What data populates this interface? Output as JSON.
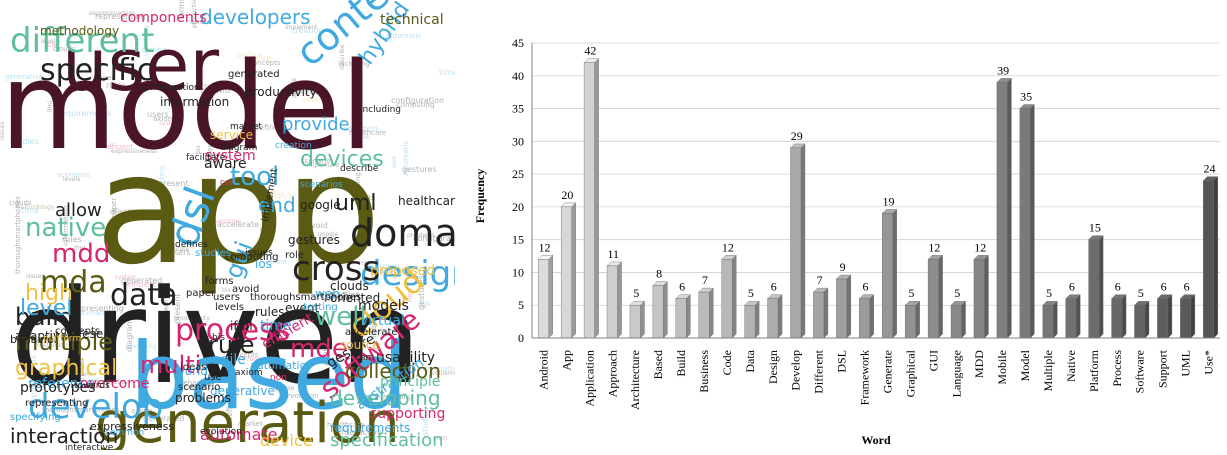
{
  "word_cloud": {
    "words": [
      {
        "text": "model",
        "color": "#4a1528"
      },
      {
        "text": "user",
        "color": "#4a1528"
      },
      {
        "text": "app",
        "color": "#5a5a12"
      },
      {
        "text": "driven",
        "color": "#222222"
      },
      {
        "text": "based",
        "color": "#3fa9e0"
      },
      {
        "text": "generation",
        "color": "#5a5a12"
      },
      {
        "text": "different",
        "color": "#5fbf9c"
      },
      {
        "text": "specific",
        "color": "#222222"
      },
      {
        "text": "context",
        "color": "#3fa9e0"
      },
      {
        "text": "hybrid",
        "color": "#3fa9e0"
      },
      {
        "text": "design",
        "color": "#3fa9e0"
      },
      {
        "text": "domain",
        "color": "#222222"
      },
      {
        "text": "cross",
        "color": "#222222"
      },
      {
        "text": "dsl",
        "color": "#3fa9e0"
      },
      {
        "text": "mdd",
        "color": "#d6266f"
      },
      {
        "text": "mda",
        "color": "#5a5a12"
      },
      {
        "text": "data",
        "color": "#222222"
      },
      {
        "text": "gui",
        "color": "#3fa9e0"
      },
      {
        "text": "cloud",
        "color": "#f0c040"
      },
      {
        "text": "process",
        "color": "#d6266f"
      },
      {
        "text": "software",
        "color": "#d6266f"
      },
      {
        "text": "develop",
        "color": "#3fa9e0"
      },
      {
        "text": "interaction",
        "color": "#222222"
      },
      {
        "text": "specification",
        "color": "#5fbf9c"
      },
      {
        "text": "developing",
        "color": "#5fbf9c"
      },
      {
        "text": "collection",
        "color": "#5a5a12"
      },
      {
        "text": "multiple",
        "color": "#5a5a12"
      },
      {
        "text": "graphical",
        "color": "#f0c040"
      },
      {
        "text": "build",
        "color": "#222222"
      },
      {
        "text": "native",
        "color": "#5fbf9c"
      },
      {
        "text": "level",
        "color": "#3fa9e0"
      },
      {
        "text": "high",
        "color": "#f0c040"
      },
      {
        "text": "tool",
        "color": "#3fa9e0"
      },
      {
        "text": "uml",
        "color": "#222222"
      },
      {
        "text": "devices",
        "color": "#5fbf9c"
      },
      {
        "text": "developers",
        "color": "#3fa9e0"
      },
      {
        "text": "components",
        "color": "#d6266f"
      },
      {
        "text": "technical",
        "color": "#5a5a12"
      },
      {
        "text": "provide",
        "color": "#3fa9e0"
      },
      {
        "text": "rule",
        "color": "#222222"
      },
      {
        "text": "mde",
        "color": "#d6266f"
      },
      {
        "text": "well",
        "color": "#5fbf9c"
      },
      {
        "text": "models",
        "color": "#222222"
      },
      {
        "text": "virtual",
        "color": "#3fa9e0"
      },
      {
        "text": "gesture",
        "color": "#222222"
      },
      {
        "text": "usability",
        "color": "#222222"
      },
      {
        "text": "supporting",
        "color": "#d6266f"
      },
      {
        "text": "abstraction",
        "color": "#3fa9e0"
      },
      {
        "text": "automate",
        "color": "#d6266f"
      },
      {
        "text": "device",
        "color": "#f0c040"
      },
      {
        "text": "reference",
        "color": "#3fa9e0"
      },
      {
        "text": "adaptive",
        "color": "#222222"
      },
      {
        "text": "prototypes",
        "color": "#222222"
      },
      {
        "text": "multi",
        "color": "#d6266f"
      },
      {
        "text": "allow",
        "color": "#222222"
      },
      {
        "text": "proposed",
        "color": "#f0c040"
      },
      {
        "text": "end",
        "color": "#3fa9e0"
      },
      {
        "text": "ios",
        "color": "#3fa9e0"
      },
      {
        "text": "event",
        "color": "#222222"
      },
      {
        "text": "oriented",
        "color": "#222222"
      },
      {
        "text": "web",
        "color": "#3fa9e0"
      },
      {
        "text": "clouds",
        "color": "#222222"
      },
      {
        "text": "rules",
        "color": "#222222"
      },
      {
        "text": "system",
        "color": "#d6266f"
      },
      {
        "text": "aware",
        "color": "#222222"
      },
      {
        "text": "service",
        "color": "#f0c040"
      },
      {
        "text": "google",
        "color": "#222222"
      },
      {
        "text": "healthcare",
        "color": "#222222"
      },
      {
        "text": "gestures",
        "color": "#222222"
      },
      {
        "text": "methodology",
        "color": "#5a5a12"
      },
      {
        "text": "information",
        "color": "#222222"
      },
      {
        "text": "generated",
        "color": "#222222"
      },
      {
        "text": "productivity",
        "color": "#222222"
      },
      {
        "text": "concepts",
        "color": "#222222"
      },
      {
        "text": "source",
        "color": "#f0c040"
      },
      {
        "text": "agile",
        "color": "#3fa9e0"
      },
      {
        "text": "automatic",
        "color": "#3fa9e0"
      },
      {
        "text": "time",
        "color": "#3fa9e0"
      },
      {
        "text": "ifml",
        "color": "#222222"
      },
      {
        "text": "efficient",
        "color": "#d6266f"
      },
      {
        "text": "present",
        "color": "#222222"
      },
      {
        "text": "overcome",
        "color": "#d6266f"
      },
      {
        "text": "evolution",
        "color": "#222222"
      },
      {
        "text": "interactive",
        "color": "#222222"
      },
      {
        "text": "principle",
        "color": "#5fbf9c"
      },
      {
        "text": "generative",
        "color": "#3fa9e0"
      },
      {
        "text": "requirements",
        "color": "#3fa9e0"
      },
      {
        "text": "expressiveness",
        "color": "#222222"
      },
      {
        "text": "testing",
        "color": "#3fa9e0"
      },
      {
        "text": "accelerate",
        "color": "#222222"
      },
      {
        "text": "world",
        "color": "#3fa9e0"
      },
      {
        "text": "scenario",
        "color": "#222222"
      },
      {
        "text": "ideas",
        "color": "#222222"
      },
      {
        "text": "problems",
        "color": "#222222"
      },
      {
        "text": "thoroughsmartphones",
        "color": "#222222"
      },
      {
        "text": "representing",
        "color": "#222222"
      },
      {
        "text": "specifying",
        "color": "#3fa9e0"
      },
      {
        "text": "behavior",
        "color": "#222222"
      },
      {
        "text": "defines",
        "color": "#222222"
      },
      {
        "text": "implement",
        "color": "#222222"
      },
      {
        "text": "including",
        "color": "#222222"
      },
      {
        "text": "configuration",
        "color": "#222222"
      },
      {
        "text": "issues",
        "color": "#222222"
      },
      {
        "text": "scenarios",
        "color": "#3fa9e0"
      },
      {
        "text": "diagram",
        "color": "#222222"
      },
      {
        "text": "facilitate",
        "color": "#222222"
      },
      {
        "text": "market",
        "color": "#222222"
      },
      {
        "text": "creation",
        "color": "#3fa9e0"
      },
      {
        "text": "describe",
        "color": "#222222"
      },
      {
        "text": "computing",
        "color": "#222222"
      },
      {
        "text": "studies",
        "color": "#3fa9e0"
      },
      {
        "text": "levels",
        "color": "#222222"
      },
      {
        "text": "paper",
        "color": "#222222"
      },
      {
        "text": "users",
        "color": "#222222"
      },
      {
        "text": "bis",
        "color": "#222222"
      },
      {
        "text": "use",
        "color": "#222222"
      },
      {
        "text": "avoid",
        "color": "#222222"
      },
      {
        "text": "role",
        "color": "#222222"
      },
      {
        "text": "non",
        "color": "#d6266f"
      },
      {
        "text": "car",
        "color": "#d6266f"
      },
      {
        "text": "cam",
        "color": "#222222"
      },
      {
        "text": "axiom",
        "color": "#222222"
      },
      {
        "text": "forms",
        "color": "#222222"
      },
      {
        "text": "platform",
        "color": "#f0c040"
      },
      {
        "text": "towards",
        "color": "#222222"
      },
      {
        "text": "common",
        "color": "#3fa9e0"
      }
    ]
  },
  "chart_data": {
    "type": "bar",
    "title": "",
    "xlabel": "Word",
    "ylabel": "Frequency",
    "ylim": [
      0,
      45
    ],
    "yticks": [
      0,
      5,
      10,
      15,
      20,
      25,
      30,
      35,
      40,
      45
    ],
    "grid": true,
    "categories": [
      "Android",
      "App",
      "Application",
      "Approach",
      "Architecture",
      "Based",
      "Build",
      "Business",
      "Code",
      "Data",
      "Design",
      "Develop",
      "Different",
      "DSL",
      "Framework",
      "Generate",
      "Graphical",
      "GUI",
      "Language",
      "MDD",
      "Mobile",
      "Model",
      "Multiple",
      "Native",
      "Platform",
      "Process",
      "Software",
      "Support",
      "UML",
      "Use*"
    ],
    "values": [
      12,
      20,
      42,
      11,
      5,
      8,
      6,
      7,
      12,
      5,
      6,
      29,
      7,
      9,
      6,
      19,
      5,
      12,
      5,
      12,
      39,
      35,
      5,
      6,
      15,
      6,
      5,
      6,
      6,
      24
    ],
    "colors": {
      "front_start": "#dcdcdc",
      "front_end": "#555555",
      "grid": "#d0d0d0",
      "axis": "#808080"
    }
  }
}
